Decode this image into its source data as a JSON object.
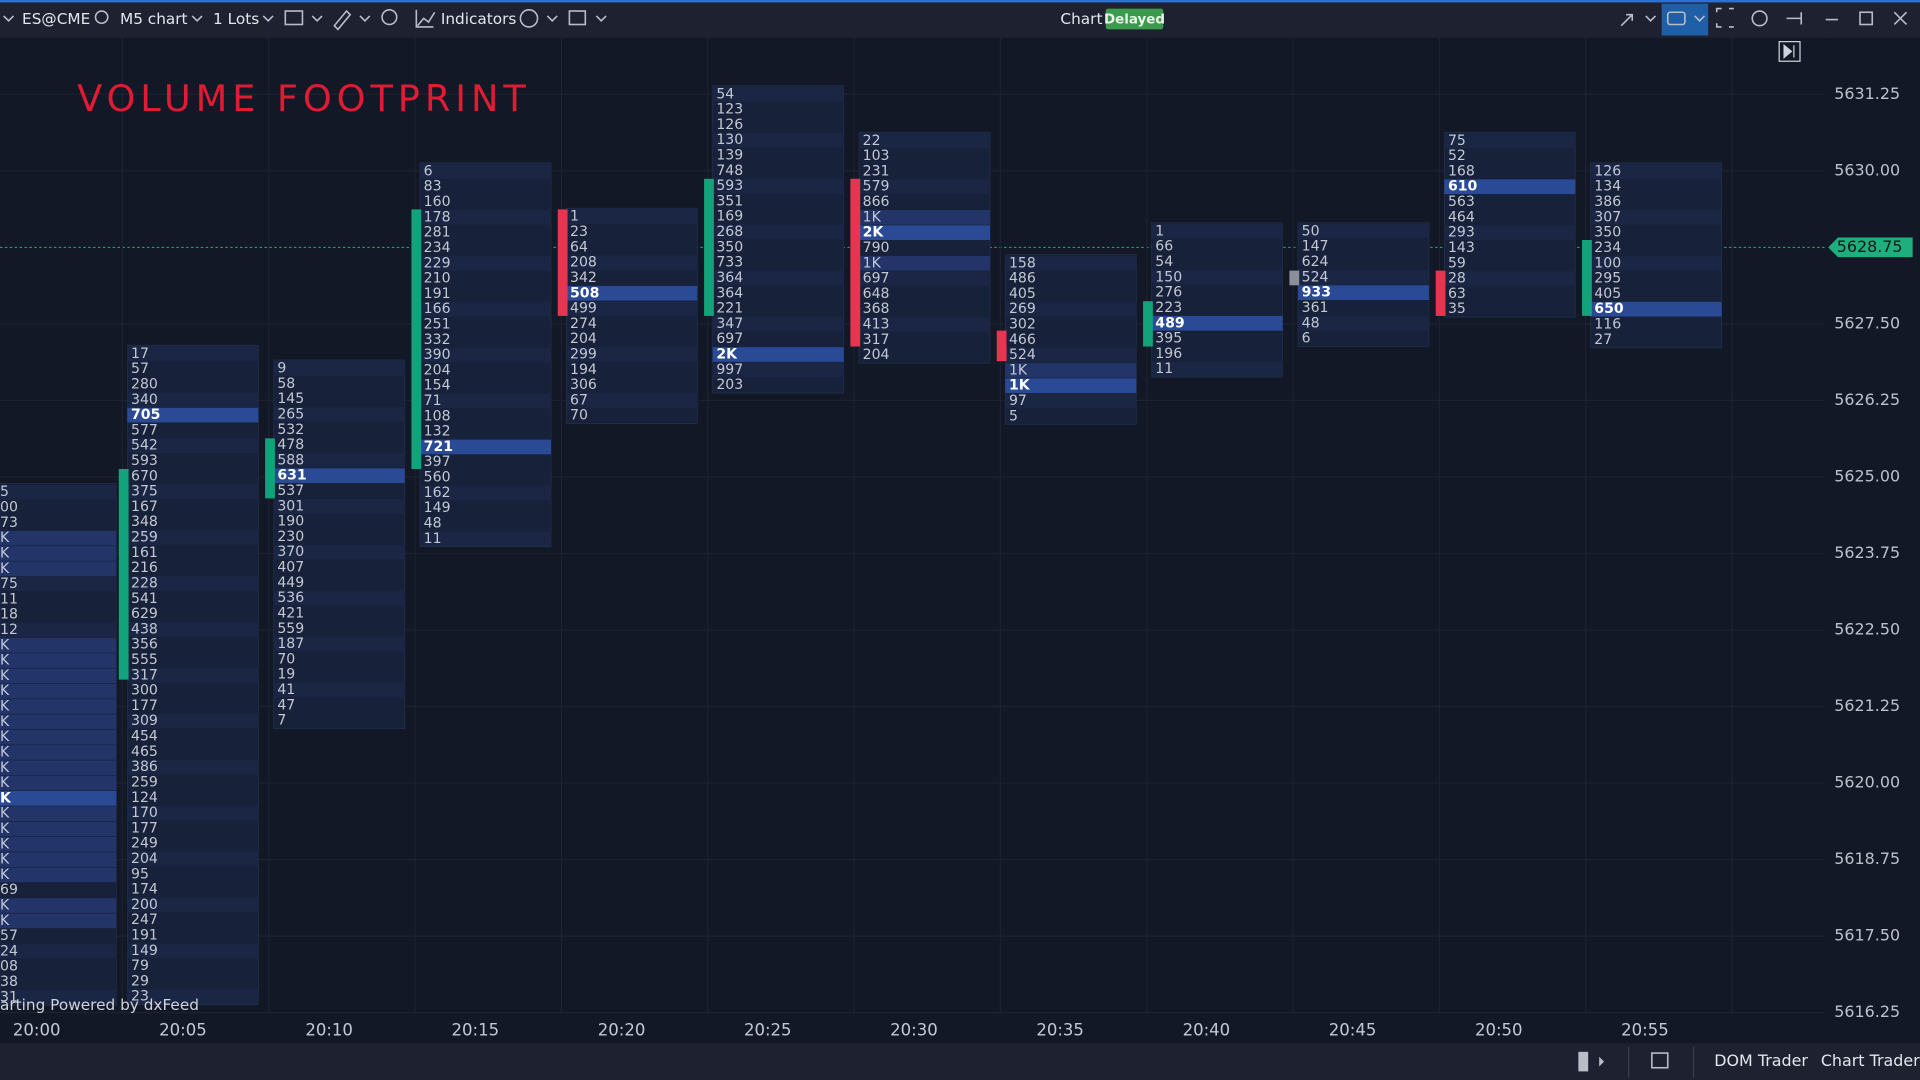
{
  "toolbar": {
    "symbol": "ES@CME",
    "timeframe": "M5 chart",
    "lots": "1 Lots",
    "indicators": "Indicators",
    "chart_label": "Chart",
    "status": "Delayed"
  },
  "chart": {
    "title": "VOLUME FOOTPRINT",
    "price_labels": [
      "5631.25",
      "5630.00",
      "5627.50",
      "5626.25",
      "5625.00",
      "5623.75",
      "5622.50",
      "5621.25",
      "5620.00",
      "5618.75",
      "5617.50",
      "5616.25"
    ],
    "current_price": "5628.75",
    "time_labels": [
      "20:00",
      "20:05",
      "20:10",
      "20:15",
      "20:20",
      "20:25",
      "20:30",
      "20:35",
      "20:40",
      "20:45",
      "20:50",
      "20:55"
    ],
    "columns": [
      {
        "volumes": [
          "5",
          "00",
          "73",
          "K",
          "K",
          "K",
          "75",
          "11",
          "18",
          "12",
          "K",
          "K",
          "K",
          "K",
          "K",
          "K",
          "K",
          "K",
          "K",
          "K",
          "K",
          "K",
          "K",
          "K",
          "K",
          "K",
          "69",
          "K",
          "K",
          "57",
          "24",
          "08",
          "38",
          "31"
        ]
      },
      {
        "volumes": [
          17,
          57,
          280,
          340,
          705,
          577,
          542,
          593,
          670,
          375,
          167,
          348,
          259,
          161,
          216,
          228,
          541,
          629,
          438,
          356,
          555,
          317,
          300,
          177,
          309,
          454,
          465,
          386,
          259,
          124,
          170,
          177,
          249,
          204,
          95,
          174,
          200,
          247,
          191,
          149,
          79,
          29,
          23
        ]
      },
      {
        "volumes": [
          9,
          58,
          145,
          265,
          532,
          478,
          588,
          631,
          537,
          301,
          190,
          230,
          370,
          407,
          449,
          536,
          421,
          559,
          187,
          70,
          19,
          41,
          47,
          7
        ]
      },
      {
        "volumes": [
          6,
          83,
          160,
          178,
          281,
          234,
          229,
          210,
          191,
          166,
          251,
          332,
          390,
          204,
          154,
          71,
          108,
          132,
          721,
          397,
          560,
          162,
          149,
          48,
          11
        ]
      },
      {
        "volumes": [
          1,
          23,
          64,
          208,
          342,
          508,
          499,
          274,
          204,
          299,
          194,
          306,
          67,
          70
        ]
      },
      {
        "volumes": [
          54,
          123,
          126,
          130,
          139,
          748,
          593,
          351,
          169,
          268,
          350,
          733,
          364,
          364,
          221,
          347,
          697,
          "2K",
          997,
          203
        ]
      },
      {
        "volumes": [
          22,
          103,
          231,
          579,
          866,
          "1K",
          "2K",
          790,
          "1K",
          697,
          648,
          368,
          413,
          317,
          204
        ]
      },
      {
        "volumes": [
          158,
          486,
          405,
          269,
          302,
          466,
          524,
          "1K",
          "1K",
          97,
          5
        ]
      },
      {
        "volumes": [
          1,
          66,
          54,
          150,
          276,
          223,
          489,
          395,
          196,
          11
        ]
      },
      {
        "volumes": [
          50,
          147,
          624,
          524,
          933,
          361,
          48,
          6
        ]
      },
      {
        "volumes": [
          75,
          52,
          168,
          610,
          563,
          464,
          293,
          143,
          59,
          28,
          63,
          35
        ]
      },
      {
        "volumes": [
          126,
          134,
          386,
          307,
          350,
          234,
          100,
          295,
          405,
          650,
          116,
          27
        ]
      }
    ],
    "watermark": "arting Powered by dxFeed"
  },
  "footer": {
    "buttons": [
      "DOM Trader",
      "Chart Trader"
    ]
  }
}
